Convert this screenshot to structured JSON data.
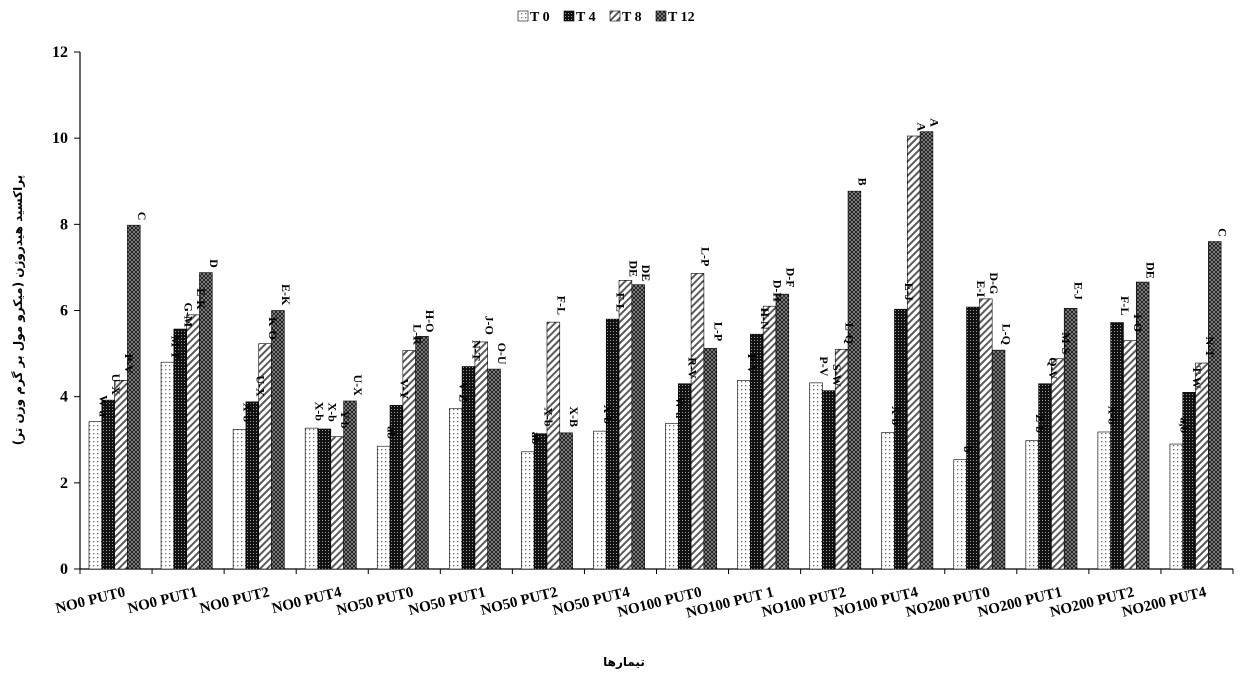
{
  "chart_data": {
    "type": "bar",
    "title": "",
    "xlabel": "تیمارها",
    "ylabel": "پراکسید هیدروژن (میکرو مول بر گرم وزن تر)",
    "ylim": [
      0,
      12
    ],
    "yticks": [
      0,
      2,
      4,
      6,
      8,
      10,
      12
    ],
    "legend_position": "top-center",
    "categories": [
      "NO0 PUT0",
      "NO0 PUT1",
      "NO0 PUT2",
      "NO0 PUT4",
      "NO50 PUT0",
      "NO50 PUT1",
      "NO50 PUT2",
      "NO50 PUT4",
      "NO100 PUT0",
      "NO100 PUT 1",
      "NO100 PUT2",
      "NO100 PUT4",
      "NO200 PUT0",
      "NO200 PUT1",
      "NO200 PUT2",
      "NO200 PUT4"
    ],
    "series": [
      {
        "name": "T 0",
        "pattern": "dots",
        "color": "#c8c8c8",
        "values": [
          3.42,
          4.8,
          3.24,
          3.27,
          2.85,
          3.72,
          2.72,
          3.2,
          3.38,
          4.38,
          4.32,
          3.17,
          2.54,
          2.98,
          3.18,
          2.9
        ],
        "labels": [
          "W-a",
          "M-T",
          "X-b",
          "X-b",
          "ab",
          "V-Z",
          "ab",
          "X-b",
          "W-a",
          "P-V",
          "P-V",
          "X-b",
          "b",
          "Z-b",
          "X-b",
          "a,b"
        ]
      },
      {
        "name": "T 4",
        "pattern": "dense-dots",
        "color": "#111111",
        "values": [
          3.92,
          5.57,
          3.88,
          3.25,
          3.8,
          4.7,
          3.14,
          5.8,
          4.3,
          5.45,
          4.14,
          6.03,
          6.08,
          4.3,
          5.72,
          4.1
        ],
        "labels": [
          "U-X",
          "G-M",
          "U-X",
          "X-b",
          "V-Y",
          "N-T",
          "X-b",
          "F-L",
          "R-V",
          "H-N",
          "S-W",
          "E-J",
          "E-I",
          "Q-V",
          "F-L",
          "T-W"
        ]
      },
      {
        "name": "T 8",
        "pattern": "diagonal",
        "color": "#777777",
        "values": [
          4.38,
          5.9,
          5.23,
          3.07,
          5.07,
          5.27,
          5.73,
          6.7,
          6.86,
          6.1,
          5.1,
          10.05,
          6.27,
          4.88,
          5.3,
          4.78
        ],
        "labels": [
          "P-V",
          "E-K",
          "K-O",
          "Y-b",
          "L-R",
          "J-O",
          "F-L",
          "DE",
          "L-P",
          "D-H",
          "L-Q",
          "A",
          "D-G",
          "M-S",
          "I-O",
          "N-T"
        ]
      },
      {
        "name": "T 12",
        "pattern": "cross",
        "color": "#555555",
        "values": [
          7.98,
          6.88,
          6.0,
          3.9,
          5.4,
          4.64,
          3.16,
          6.6,
          5.12,
          6.38,
          8.77,
          10.15,
          5.08,
          6.05,
          6.66,
          7.6
        ],
        "labels": [
          "C",
          "D",
          "E-K",
          "U-X",
          "H-O",
          "O-U",
          "X-B",
          "DE",
          "L-P",
          "D-F",
          "B",
          "A",
          "L-Q",
          "E-J",
          "DE",
          "C"
        ]
      }
    ]
  }
}
